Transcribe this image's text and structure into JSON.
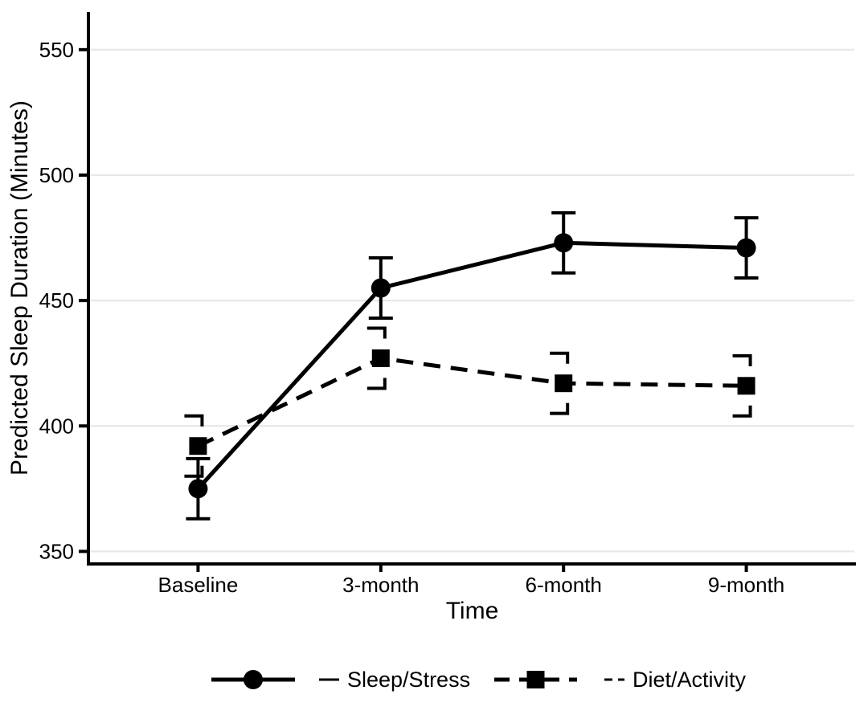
{
  "chart_data": {
    "type": "line",
    "title": "",
    "xlabel": "Time",
    "ylabel": "Predicted Sleep Duration (Minutes)",
    "categories": [
      "Baseline",
      "3-month",
      "6-month",
      "9-month"
    ],
    "y_ticks": [
      350,
      400,
      450,
      500,
      550
    ],
    "ylim": [
      345,
      565
    ],
    "grid": "horizontal-major-only",
    "legend_position": "bottom-center",
    "colors": {
      "series": "#000000",
      "text": "#000000",
      "gridline": "#e8e8e8",
      "background": "#ffffff"
    },
    "series": [
      {
        "name": "Sleep/Stress",
        "marker": "circle",
        "linetype": "solid",
        "color": "#000000",
        "values": [
          375,
          455,
          473,
          471
        ],
        "ci_low": [
          363,
          443,
          461,
          459
        ],
        "ci_high": [
          387,
          467,
          485,
          483
        ]
      },
      {
        "name": "Diet/Activity",
        "marker": "square",
        "linetype": "dashed",
        "color": "#000000",
        "values": [
          392,
          427,
          417,
          416
        ],
        "ci_low": [
          380,
          415,
          405,
          404
        ],
        "ci_high": [
          404,
          439,
          429,
          428
        ]
      }
    ],
    "legend": [
      {
        "label": "Sleep/Stress",
        "linetype_key": "solid"
      },
      {
        "label": "Diet/Activity",
        "linetype_key": "dashed"
      }
    ]
  }
}
